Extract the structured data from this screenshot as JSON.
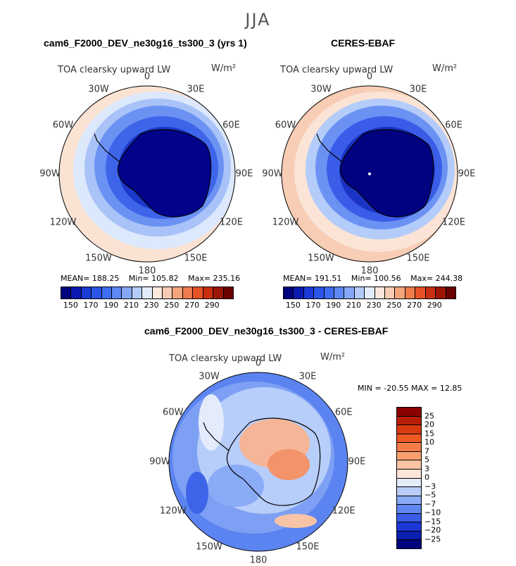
{
  "season": "JJA",
  "panels": [
    {
      "title": "cam6_F2000_DEV_ne30g16_ts300_3 (yrs 1)",
      "variable": "TOA clearsky upward LW",
      "unit": "W/m²",
      "mean_label": "MEAN= 188.25",
      "min_label": "Min= 105.82",
      "max_label": "Max= 235.16"
    },
    {
      "title": "CERES-EBAF",
      "variable": "TOA clearsky upward LW",
      "unit": "W/m²",
      "mean_label": "MEAN= 191.51",
      "min_label": "Min= 100.56",
      "max_label": "Max= 244.38"
    },
    {
      "title": "cam6_F2000_DEV_ne30g16_ts300_3 - CERES-EBAF",
      "variable": "TOA clearsky upward LW",
      "unit": "W/m²",
      "minmax_label": "MIN = -20.55  MAX =  12.85"
    }
  ],
  "lon_labels": [
    "0",
    "30E",
    "60E",
    "90E",
    "120E",
    "150E",
    "180",
    "150W",
    "120W",
    "90W",
    "60W",
    "30W"
  ],
  "chart_data": [
    {
      "type": "heatmap",
      "projection": "south-polar-stereographic",
      "title": "cam6_F2000_DEV_ne30g16_ts300_3 (yrs 1)",
      "variable": "TOA clearsky upward LW",
      "units": "W/m²",
      "mean": 188.25,
      "min": 105.82,
      "max": 235.16,
      "colorbar_ticks": [
        150,
        170,
        190,
        210,
        230,
        250,
        270,
        290
      ],
      "colorbar_colors": [
        "#02027d",
        "#0a1ab0",
        "#1a3ad6",
        "#2a55e8",
        "#3e6cf2",
        "#5f88f5",
        "#86a7f7",
        "#b4cbfa",
        "#e2edfc",
        "#fbe7dc",
        "#f8cbb3",
        "#f4a57d",
        "#ef7c4d",
        "#e65226",
        "#c92e10",
        "#9b1505",
        "#6b0000"
      ]
    },
    {
      "type": "heatmap",
      "projection": "south-polar-stereographic",
      "title": "CERES-EBAF",
      "variable": "TOA clearsky upward LW",
      "units": "W/m²",
      "mean": 191.51,
      "min": 100.56,
      "max": 244.38,
      "colorbar_ticks": [
        150,
        170,
        190,
        210,
        230,
        250,
        270,
        290
      ],
      "colorbar_colors": [
        "#02027d",
        "#0a1ab0",
        "#1a3ad6",
        "#2a55e8",
        "#3e6cf2",
        "#5f88f5",
        "#86a7f7",
        "#b4cbfa",
        "#e2edfc",
        "#fbe7dc",
        "#f8cbb3",
        "#f4a57d",
        "#ef7c4d",
        "#e65226",
        "#c92e10",
        "#9b1505",
        "#6b0000"
      ]
    },
    {
      "type": "heatmap",
      "projection": "south-polar-stereographic",
      "title": "cam6_F2000_DEV_ne30g16_ts300_3 - CERES-EBAF",
      "variable": "TOA clearsky upward LW",
      "units": "W/m²",
      "min": -20.55,
      "max": 12.85,
      "colorbar_ticks": [
        25,
        20,
        15,
        10,
        7,
        5,
        3,
        0,
        -3,
        -5,
        -7,
        -10,
        -15,
        -20,
        -25
      ],
      "colorbar_colors": [
        "#8b0000",
        "#b81d06",
        "#d93a10",
        "#ef5a24",
        "#f57d48",
        "#f8a070",
        "#fac4a3",
        "#fde6d8",
        "#e4ecfc",
        "#b8cdfa",
        "#8aabf6",
        "#5f86f2",
        "#3a5de8",
        "#1c38d6",
        "#0b1fb0",
        "#02027d"
      ]
    }
  ]
}
